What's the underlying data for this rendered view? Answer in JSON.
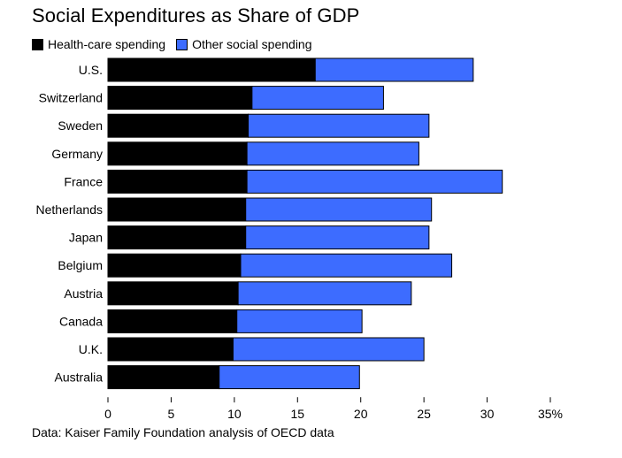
{
  "colors": {
    "health": "#000000",
    "other": "#3d6cff",
    "axis": "#000000"
  },
  "chart_data": {
    "type": "bar",
    "orientation": "horizontal",
    "stacked": true,
    "title": "Social Expenditures as Share of GDP",
    "legend_position": "top-left",
    "categories": [
      "U.S.",
      "Switzerland",
      "Sweden",
      "Germany",
      "France",
      "Netherlands",
      "Japan",
      "Belgium",
      "Austria",
      "Canada",
      "U.K.",
      "Australia"
    ],
    "series": [
      {
        "name": "Health-care spending",
        "values": [
          16.4,
          11.4,
          11.1,
          11.0,
          11.0,
          10.9,
          10.9,
          10.5,
          10.3,
          10.2,
          9.9,
          8.8
        ]
      },
      {
        "name": "Other social spending",
        "values": [
          12.5,
          10.4,
          14.3,
          13.6,
          20.2,
          14.7,
          14.5,
          16.7,
          13.7,
          9.9,
          15.1,
          11.1
        ]
      }
    ],
    "xlim": [
      0,
      35
    ],
    "xticks": [
      "0",
      "5",
      "10",
      "15",
      "20",
      "25",
      "30",
      "35%"
    ],
    "grid": false,
    "source": "Data: Kaiser Family Foundation analysis of OECD data"
  }
}
